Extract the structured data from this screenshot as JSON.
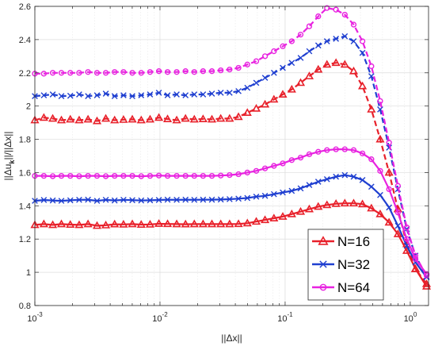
{
  "chart_data": {
    "type": "line",
    "xlabel": "||Δx||",
    "ylabel_main": "||Δu",
    "ylabel_sub": "k",
    "ylabel_rest": "||/||Δx||",
    "xscale": "log",
    "xlim": [
      0.001,
      1.4
    ],
    "ylim": [
      0.8,
      2.6
    ],
    "grid": true,
    "legend_placement": "bottom-right",
    "x_ticks": [
      0.001,
      0.01,
      0.1,
      1
    ],
    "x_tick_labels": [
      [
        "10",
        "-3"
      ],
      [
        "10",
        "-2"
      ],
      [
        "10",
        "-1"
      ],
      [
        "10",
        "0"
      ]
    ],
    "y_ticks": [
      0.8,
      1,
      1.2,
      1.4,
      1.6,
      1.8,
      2,
      2.2,
      2.4,
      2.6
    ],
    "y_tick_labels": [
      "0.8",
      "1",
      "1.2",
      "1.4",
      "1.6",
      "1.8",
      "2",
      "2.2",
      "2.4",
      "2.6"
    ],
    "legend": [
      {
        "name": "N=16",
        "color": "#e8202a",
        "marker": "triangle"
      },
      {
        "name": "N=32",
        "color": "#1f3fd0",
        "marker": "x"
      },
      {
        "name": "N=64",
        "color": "#e823e0",
        "marker": "circle"
      }
    ],
    "series": [
      {
        "group": "N=16",
        "style": "solid",
        "color": "#e8202a",
        "marker": "triangle",
        "points": [
          [
            0.001,
            1.285
          ],
          [
            0.00118,
            1.29
          ],
          [
            0.00139,
            1.285
          ],
          [
            0.00163,
            1.29
          ],
          [
            0.00192,
            1.287
          ],
          [
            0.00226,
            1.285
          ],
          [
            0.00266,
            1.29
          ],
          [
            0.00314,
            1.28
          ],
          [
            0.00369,
            1.283
          ],
          [
            0.00434,
            1.289
          ],
          [
            0.00511,
            1.288
          ],
          [
            0.00601,
            1.29
          ],
          [
            0.00708,
            1.287
          ],
          [
            0.00833,
            1.288
          ],
          [
            0.0098,
            1.292
          ],
          [
            0.0115,
            1.291
          ],
          [
            0.0136,
            1.29
          ],
          [
            0.016,
            1.289
          ],
          [
            0.0188,
            1.29
          ],
          [
            0.0221,
            1.29
          ],
          [
            0.026,
            1.29
          ],
          [
            0.0306,
            1.29
          ],
          [
            0.036,
            1.29
          ],
          [
            0.0424,
            1.291
          ],
          [
            0.0499,
            1.295
          ],
          [
            0.0588,
            1.305
          ],
          [
            0.0691,
            1.315
          ],
          [
            0.0814,
            1.325
          ],
          [
            0.0958,
            1.335
          ],
          [
            0.113,
            1.35
          ],
          [
            0.133,
            1.365
          ],
          [
            0.156,
            1.38
          ],
          [
            0.184,
            1.395
          ],
          [
            0.216,
            1.405
          ],
          [
            0.255,
            1.412
          ],
          [
            0.3,
            1.415
          ],
          [
            0.353,
            1.415
          ],
          [
            0.415,
            1.41
          ],
          [
            0.489,
            1.385
          ],
          [
            0.575,
            1.35
          ],
          [
            0.677,
            1.3
          ],
          [
            0.797,
            1.23
          ],
          [
            0.938,
            1.13
          ],
          [
            1.1,
            1.02
          ],
          [
            1.35,
            0.915
          ]
        ]
      },
      {
        "group": "N=16",
        "style": "dashed",
        "color": "#e8202a",
        "marker": "triangle",
        "points": [
          [
            0.001,
            1.915
          ],
          [
            0.00118,
            1.93
          ],
          [
            0.00139,
            1.925
          ],
          [
            0.00163,
            1.915
          ],
          [
            0.00192,
            1.92
          ],
          [
            0.00226,
            1.915
          ],
          [
            0.00266,
            1.92
          ],
          [
            0.00314,
            1.91
          ],
          [
            0.00369,
            1.925
          ],
          [
            0.00434,
            1.915
          ],
          [
            0.00511,
            1.918
          ],
          [
            0.00601,
            1.92
          ],
          [
            0.00708,
            1.915
          ],
          [
            0.00833,
            1.92
          ],
          [
            0.0098,
            1.93
          ],
          [
            0.0115,
            1.922
          ],
          [
            0.0136,
            1.915
          ],
          [
            0.016,
            1.925
          ],
          [
            0.0188,
            1.92
          ],
          [
            0.0221,
            1.922
          ],
          [
            0.026,
            1.92
          ],
          [
            0.0306,
            1.925
          ],
          [
            0.036,
            1.925
          ],
          [
            0.0424,
            1.935
          ],
          [
            0.0499,
            1.96
          ],
          [
            0.0588,
            1.985
          ],
          [
            0.0691,
            2.01
          ],
          [
            0.0814,
            2.04
          ],
          [
            0.0958,
            2.07
          ],
          [
            0.113,
            2.1
          ],
          [
            0.133,
            2.14
          ],
          [
            0.156,
            2.18
          ],
          [
            0.184,
            2.22
          ],
          [
            0.216,
            2.25
          ],
          [
            0.255,
            2.26
          ],
          [
            0.3,
            2.25
          ],
          [
            0.353,
            2.21
          ],
          [
            0.415,
            2.12
          ],
          [
            0.489,
            1.98
          ],
          [
            0.575,
            1.8
          ],
          [
            0.677,
            1.6
          ],
          [
            0.797,
            1.38
          ],
          [
            0.938,
            1.17
          ],
          [
            1.1,
            1.02
          ],
          [
            1.35,
            0.93
          ]
        ]
      },
      {
        "group": "N=32",
        "style": "solid",
        "color": "#1f3fd0",
        "marker": "x",
        "points": [
          [
            0.001,
            1.43
          ],
          [
            0.00118,
            1.435
          ],
          [
            0.00139,
            1.432
          ],
          [
            0.00163,
            1.43
          ],
          [
            0.00192,
            1.433
          ],
          [
            0.00226,
            1.436
          ],
          [
            0.00266,
            1.437
          ],
          [
            0.00314,
            1.43
          ],
          [
            0.00369,
            1.436
          ],
          [
            0.00434,
            1.432
          ],
          [
            0.00511,
            1.436
          ],
          [
            0.00601,
            1.434
          ],
          [
            0.00708,
            1.432
          ],
          [
            0.00833,
            1.433
          ],
          [
            0.0098,
            1.435
          ],
          [
            0.0115,
            1.437
          ],
          [
            0.0136,
            1.436
          ],
          [
            0.016,
            1.437
          ],
          [
            0.0188,
            1.436
          ],
          [
            0.0221,
            1.437
          ],
          [
            0.026,
            1.437
          ],
          [
            0.0306,
            1.438
          ],
          [
            0.036,
            1.44
          ],
          [
            0.0424,
            1.443
          ],
          [
            0.0499,
            1.447
          ],
          [
            0.0588,
            1.455
          ],
          [
            0.0691,
            1.46
          ],
          [
            0.0814,
            1.47
          ],
          [
            0.0958,
            1.48
          ],
          [
            0.113,
            1.49
          ],
          [
            0.133,
            1.505
          ],
          [
            0.156,
            1.525
          ],
          [
            0.184,
            1.545
          ],
          [
            0.216,
            1.56
          ],
          [
            0.255,
            1.575
          ],
          [
            0.3,
            1.585
          ],
          [
            0.353,
            1.575
          ],
          [
            0.415,
            1.555
          ],
          [
            0.489,
            1.515
          ],
          [
            0.575,
            1.465
          ],
          [
            0.677,
            1.39
          ],
          [
            0.797,
            1.28
          ],
          [
            0.938,
            1.16
          ],
          [
            1.1,
            1.06
          ],
          [
            1.35,
            0.97
          ]
        ]
      },
      {
        "group": "N=32",
        "style": "dashed",
        "color": "#1f3fd0",
        "marker": "x",
        "points": [
          [
            0.001,
            2.06
          ],
          [
            0.00118,
            2.065
          ],
          [
            0.00139,
            2.07
          ],
          [
            0.00163,
            2.06
          ],
          [
            0.00192,
            2.062
          ],
          [
            0.00226,
            2.07
          ],
          [
            0.00266,
            2.06
          ],
          [
            0.00314,
            2.065
          ],
          [
            0.00369,
            2.075
          ],
          [
            0.00434,
            2.06
          ],
          [
            0.00511,
            2.065
          ],
          [
            0.00601,
            2.06
          ],
          [
            0.00708,
            2.065
          ],
          [
            0.00833,
            2.07
          ],
          [
            0.0098,
            2.08
          ],
          [
            0.0115,
            2.065
          ],
          [
            0.0136,
            2.07
          ],
          [
            0.016,
            2.065
          ],
          [
            0.0188,
            2.07
          ],
          [
            0.0221,
            2.07
          ],
          [
            0.026,
            2.075
          ],
          [
            0.0306,
            2.08
          ],
          [
            0.036,
            2.08
          ],
          [
            0.0424,
            2.09
          ],
          [
            0.0499,
            2.11
          ],
          [
            0.0588,
            2.14
          ],
          [
            0.0691,
            2.17
          ],
          [
            0.0814,
            2.2
          ],
          [
            0.0958,
            2.23
          ],
          [
            0.113,
            2.26
          ],
          [
            0.133,
            2.29
          ],
          [
            0.156,
            2.33
          ],
          [
            0.184,
            2.365
          ],
          [
            0.216,
            2.39
          ],
          [
            0.255,
            2.405
          ],
          [
            0.3,
            2.42
          ],
          [
            0.353,
            2.39
          ],
          [
            0.415,
            2.32
          ],
          [
            0.489,
            2.18
          ],
          [
            0.575,
            1.98
          ],
          [
            0.677,
            1.75
          ],
          [
            0.797,
            1.5
          ],
          [
            0.938,
            1.26
          ],
          [
            1.1,
            1.1
          ],
          [
            1.35,
            0.975
          ]
        ]
      },
      {
        "group": "N=64",
        "style": "solid",
        "color": "#e823e0",
        "marker": "circle",
        "points": [
          [
            0.001,
            1.58
          ],
          [
            0.00118,
            1.58
          ],
          [
            0.00139,
            1.578
          ],
          [
            0.00163,
            1.58
          ],
          [
            0.00192,
            1.58
          ],
          [
            0.00226,
            1.578
          ],
          [
            0.00266,
            1.58
          ],
          [
            0.00314,
            1.58
          ],
          [
            0.00369,
            1.578
          ],
          [
            0.00434,
            1.58
          ],
          [
            0.00511,
            1.58
          ],
          [
            0.00601,
            1.58
          ],
          [
            0.00708,
            1.578
          ],
          [
            0.00833,
            1.58
          ],
          [
            0.0098,
            1.582
          ],
          [
            0.0115,
            1.58
          ],
          [
            0.0136,
            1.58
          ],
          [
            0.016,
            1.58
          ],
          [
            0.0188,
            1.58
          ],
          [
            0.0221,
            1.58
          ],
          [
            0.026,
            1.58
          ],
          [
            0.0306,
            1.582
          ],
          [
            0.036,
            1.585
          ],
          [
            0.0424,
            1.59
          ],
          [
            0.0499,
            1.6
          ],
          [
            0.0588,
            1.61
          ],
          [
            0.0691,
            1.625
          ],
          [
            0.0814,
            1.64
          ],
          [
            0.0958,
            1.655
          ],
          [
            0.113,
            1.675
          ],
          [
            0.133,
            1.69
          ],
          [
            0.156,
            1.71
          ],
          [
            0.184,
            1.725
          ],
          [
            0.216,
            1.735
          ],
          [
            0.255,
            1.74
          ],
          [
            0.3,
            1.74
          ],
          [
            0.353,
            1.735
          ],
          [
            0.415,
            1.715
          ],
          [
            0.489,
            1.68
          ],
          [
            0.575,
            1.61
          ],
          [
            0.677,
            1.5
          ],
          [
            0.797,
            1.36
          ],
          [
            0.938,
            1.2
          ],
          [
            1.1,
            1.08
          ],
          [
            1.35,
            0.99
          ]
        ]
      },
      {
        "group": "N=64",
        "style": "dashed",
        "color": "#e823e0",
        "marker": "circle",
        "points": [
          [
            0.001,
            2.195
          ],
          [
            0.00118,
            2.195
          ],
          [
            0.00139,
            2.2
          ],
          [
            0.00163,
            2.2
          ],
          [
            0.00192,
            2.2
          ],
          [
            0.00226,
            2.2
          ],
          [
            0.00266,
            2.205
          ],
          [
            0.00314,
            2.2
          ],
          [
            0.00369,
            2.2
          ],
          [
            0.00434,
            2.205
          ],
          [
            0.00511,
            2.205
          ],
          [
            0.00601,
            2.2
          ],
          [
            0.00708,
            2.2
          ],
          [
            0.00833,
            2.205
          ],
          [
            0.0098,
            2.21
          ],
          [
            0.0115,
            2.205
          ],
          [
            0.0136,
            2.205
          ],
          [
            0.016,
            2.21
          ],
          [
            0.0188,
            2.205
          ],
          [
            0.0221,
            2.21
          ],
          [
            0.026,
            2.21
          ],
          [
            0.0306,
            2.215
          ],
          [
            0.036,
            2.22
          ],
          [
            0.0424,
            2.23
          ],
          [
            0.0499,
            2.25
          ],
          [
            0.0588,
            2.27
          ],
          [
            0.0691,
            2.3
          ],
          [
            0.0814,
            2.33
          ],
          [
            0.0958,
            2.36
          ],
          [
            0.113,
            2.39
          ],
          [
            0.133,
            2.43
          ],
          [
            0.156,
            2.48
          ],
          [
            0.184,
            2.54
          ],
          [
            0.216,
            2.59
          ],
          [
            0.255,
            2.58
          ],
          [
            0.3,
            2.55
          ],
          [
            0.353,
            2.49
          ],
          [
            0.415,
            2.39
          ],
          [
            0.489,
            2.24
          ],
          [
            0.575,
            2.03
          ],
          [
            0.677,
            1.78
          ],
          [
            0.797,
            1.52
          ],
          [
            0.938,
            1.27
          ],
          [
            1.1,
            1.1
          ],
          [
            1.35,
            0.98
          ]
        ]
      }
    ]
  }
}
